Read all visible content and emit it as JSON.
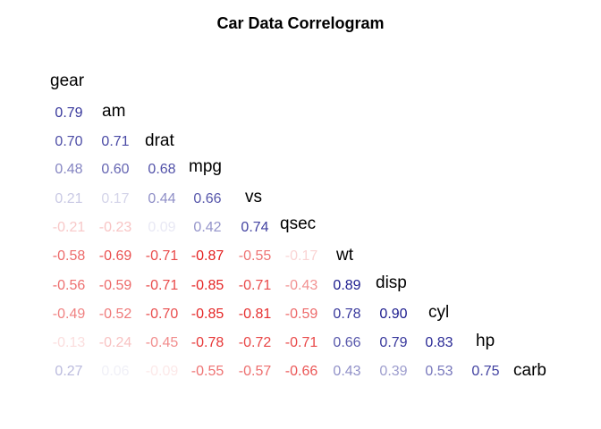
{
  "chart_data": {
    "type": "heatmap",
    "title": "Car Data Correlogram",
    "variables": [
      "gear",
      "am",
      "drat",
      "mpg",
      "vs",
      "qsec",
      "wt",
      "disp",
      "cyl",
      "hp",
      "carb"
    ],
    "rows": [
      {
        "label": "am",
        "values": [
          0.79
        ]
      },
      {
        "label": "drat",
        "values": [
          0.7,
          0.71
        ]
      },
      {
        "label": "mpg",
        "values": [
          0.48,
          0.6,
          0.68
        ]
      },
      {
        "label": "vs",
        "values": [
          0.21,
          0.17,
          0.44,
          0.66
        ]
      },
      {
        "label": "qsec",
        "values": [
          -0.21,
          -0.23,
          0.09,
          0.42,
          0.74
        ]
      },
      {
        "label": "wt",
        "values": [
          -0.58,
          -0.69,
          -0.71,
          -0.87,
          -0.55,
          -0.17
        ]
      },
      {
        "label": "disp",
        "values": [
          -0.56,
          -0.59,
          -0.71,
          -0.85,
          -0.71,
          -0.43,
          0.89
        ]
      },
      {
        "label": "cyl",
        "values": [
          -0.49,
          -0.52,
          -0.7,
          -0.85,
          -0.81,
          -0.59,
          0.78,
          0.9
        ]
      },
      {
        "label": "hp",
        "values": [
          -0.13,
          -0.24,
          -0.45,
          -0.78,
          -0.72,
          -0.71,
          0.66,
          0.79,
          0.83
        ]
      },
      {
        "label": "carb",
        "values": [
          0.27,
          0.06,
          -0.09,
          -0.55,
          -0.57,
          -0.66,
          0.43,
          0.39,
          0.53,
          0.75
        ]
      }
    ],
    "color_scale": {
      "low": "#e00000",
      "mid": "#ffffff",
      "high": "#000080"
    },
    "value_range": [
      -1,
      1
    ]
  }
}
